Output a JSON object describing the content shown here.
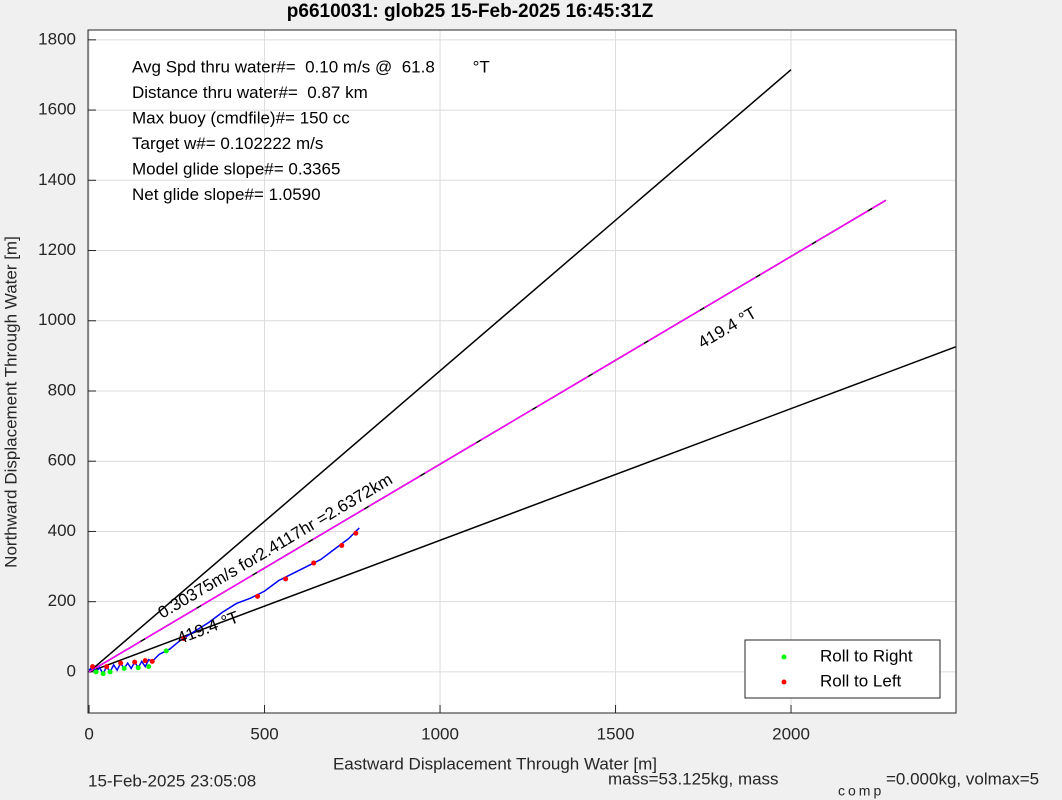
{
  "chart_data": {
    "type": "line",
    "title": "p6610031: glob25 15-Feb-2025 16:45:31Z",
    "xlabel": "Eastward Displacement Through Water [m]",
    "ylabel": "Northward Displacement Through Water [m]",
    "xlim": [
      -3,
      2470
    ],
    "ylim": [
      -117,
      1828
    ],
    "xticks": [
      0,
      500,
      1000,
      1500,
      2000
    ],
    "yticks": [
      0,
      200,
      400,
      600,
      800,
      1000,
      1200,
      1400,
      1600,
      1800
    ],
    "grid": true,
    "legend_position": "lower right",
    "info_lines": [
      "Avg Spd thru water#=  0.10 m/s @  61.8        °T",
      "Distance thru water#=  0.87 km",
      "Max buoy (cmdfile)#= 150 cc",
      "Target w#= 0.102222 m/s",
      "Model glide slope#= 0.3365",
      "Net glide slope#= 1.0590"
    ],
    "annotations": [
      "0.30375m/s for2.4117hr =2.6372km",
      "419.4 °T",
      "419.4 °T"
    ],
    "footer_left": "15-Feb-2025 23:05:08",
    "footer_right": [
      "mass=53.125kg, mass",
      "comp",
      "=0.000kg, volmax=5"
    ],
    "lines": [
      {
        "x": [
          0,
          2000
        ],
        "y": [
          0,
          1715
        ],
        "color": "#000000"
      },
      {
        "x": [
          0,
          2470
        ],
        "y": [
          0,
          926
        ],
        "color": "#000000"
      },
      {
        "x": [
          0,
          2270
        ],
        "y": [
          0,
          1343
        ],
        "color": "#ff00ff"
      }
    ],
    "track": {
      "color": "#0000ff",
      "x": [
        0,
        10,
        20,
        30,
        40,
        50,
        60,
        70,
        80,
        90,
        100,
        110,
        120,
        130,
        140,
        150,
        160,
        170,
        180,
        200,
        230,
        260,
        300,
        340,
        380,
        420,
        460,
        500,
        540,
        580,
        620,
        660,
        700,
        740,
        770
      ],
      "y": [
        5,
        15,
        0,
        12,
        -5,
        15,
        0,
        20,
        5,
        25,
        10,
        25,
        10,
        28,
        12,
        30,
        15,
        35,
        30,
        50,
        65,
        90,
        115,
        140,
        170,
        195,
        210,
        230,
        260,
        280,
        300,
        320,
        350,
        380,
        410
      ]
    },
    "series": [
      {
        "name": "Roll to Right",
        "color": "#00ff00",
        "x": [
          20,
          40,
          60,
          100,
          140,
          170,
          220
        ],
        "values": [
          0,
          -5,
          0,
          10,
          12,
          15,
          60
        ]
      },
      {
        "name": "Roll to Left",
        "color": "#ff0000",
        "x": [
          10,
          50,
          90,
          130,
          160,
          180,
          270,
          480,
          560,
          640,
          720,
          760
        ],
        "values": [
          15,
          15,
          25,
          28,
          32,
          30,
          95,
          215,
          265,
          310,
          360,
          395
        ]
      }
    ]
  }
}
